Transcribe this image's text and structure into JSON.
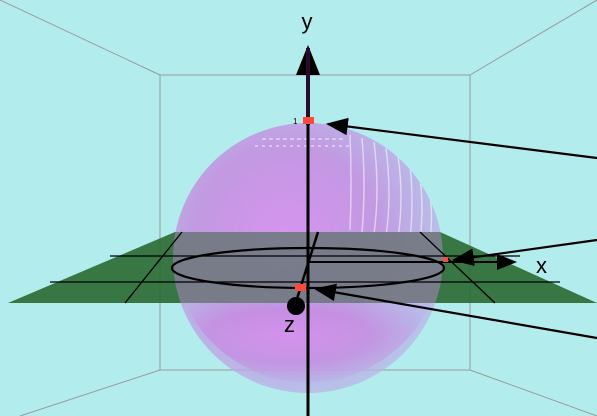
{
  "axes": {
    "x_label": "x",
    "y_label": "y",
    "z_label": "z",
    "y_tick": "1"
  },
  "colors": {
    "background": "#b2ecec",
    "room_edges": "#9a9a9a",
    "sphere": "#c58be0",
    "plane": "#2e6b35",
    "marker": "#ff4a3a",
    "ink": "#000000"
  },
  "markers": [
    {
      "name": "north-pole"
    },
    {
      "name": "equator-point"
    },
    {
      "name": "front-point"
    }
  ]
}
